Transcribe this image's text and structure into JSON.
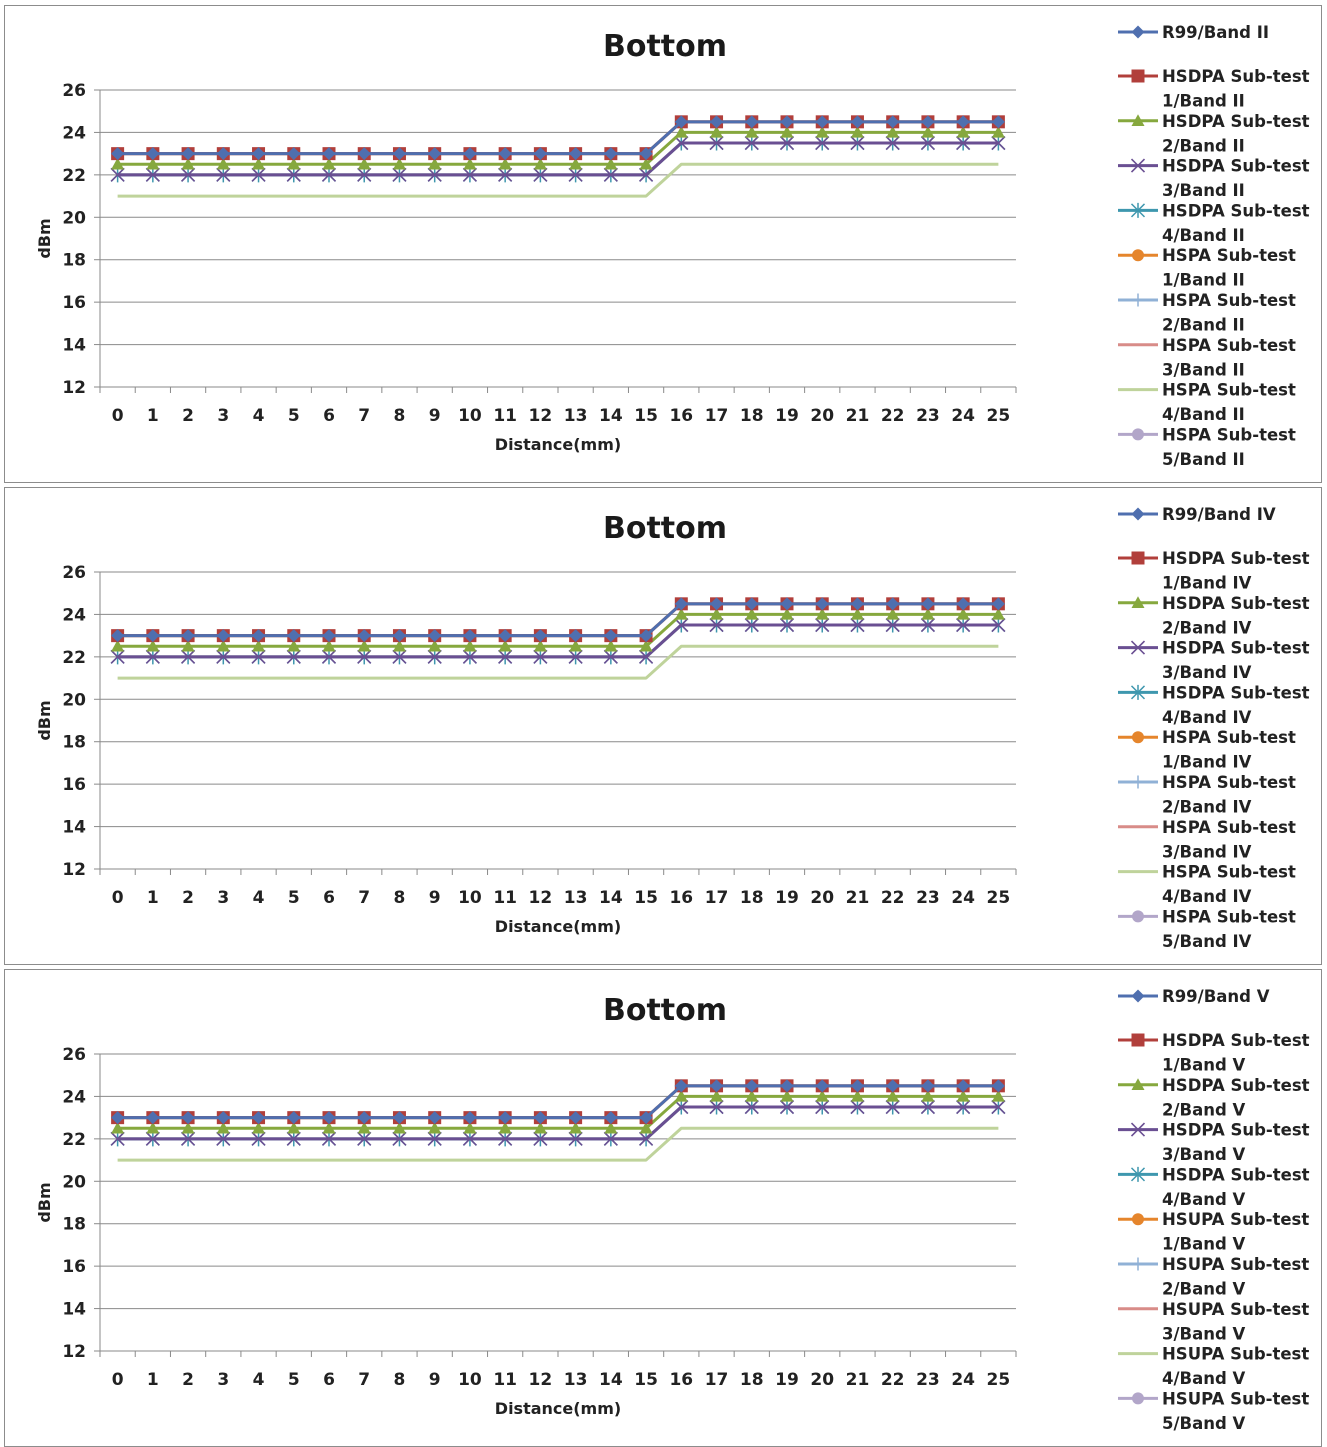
{
  "chart_data": [
    {
      "type": "line",
      "title": "Bottom",
      "xlabel": "Distance(mm)",
      "ylabel": "dBm",
      "ylim": [
        12,
        26
      ],
      "yticks": [
        12,
        14,
        16,
        18,
        20,
        22,
        24,
        26
      ],
      "grid": true,
      "legend": "right",
      "x": [
        0,
        1,
        2,
        3,
        4,
        5,
        6,
        7,
        8,
        9,
        10,
        11,
        12,
        13,
        14,
        15,
        16,
        17,
        18,
        19,
        20,
        21,
        22,
        23,
        24,
        25
      ],
      "series": [
        {
          "name": "R99/Band II",
          "color": "#4f6faf",
          "marker": "diamond",
          "values": [
            23,
            23,
            23,
            23,
            23,
            23,
            23,
            23,
            23,
            23,
            23,
            23,
            23,
            23,
            23,
            23,
            24.5,
            24.5,
            24.5,
            24.5,
            24.5,
            24.5,
            24.5,
            24.5,
            24.5,
            24.5
          ]
        },
        {
          "name": "HSDPA Sub-test 1/Band II",
          "color": "#b13f3b",
          "marker": "square",
          "values": [
            23,
            23,
            23,
            23,
            23,
            23,
            23,
            23,
            23,
            23,
            23,
            23,
            23,
            23,
            23,
            23,
            24.5,
            24.5,
            24.5,
            24.5,
            24.5,
            24.5,
            24.5,
            24.5,
            24.5,
            24.5
          ]
        },
        {
          "name": "HSDPA Sub-test 2/Band II",
          "color": "#86a83e",
          "marker": "triangle",
          "values": [
            22.5,
            22.5,
            22.5,
            22.5,
            22.5,
            22.5,
            22.5,
            22.5,
            22.5,
            22.5,
            22.5,
            22.5,
            22.5,
            22.5,
            22.5,
            22.5,
            24,
            24,
            24,
            24,
            24,
            24,
            24,
            24,
            24,
            24
          ]
        },
        {
          "name": "HSDPA Sub-test 3/Band II",
          "color": "#6a4f92",
          "marker": "x",
          "values": [
            22,
            22,
            22,
            22,
            22,
            22,
            22,
            22,
            22,
            22,
            22,
            22,
            22,
            22,
            22,
            22,
            23.5,
            23.5,
            23.5,
            23.5,
            23.5,
            23.5,
            23.5,
            23.5,
            23.5,
            23.5
          ]
        },
        {
          "name": "HSDPA Sub-test 4/Band II",
          "color": "#3e97ae",
          "marker": "asterisk",
          "values": [
            22,
            22,
            22,
            22,
            22,
            22,
            22,
            22,
            22,
            22,
            22,
            22,
            22,
            22,
            22,
            22,
            23.5,
            23.5,
            23.5,
            23.5,
            23.5,
            23.5,
            23.5,
            23.5,
            23.5,
            23.5
          ]
        },
        {
          "name": "HSPA Sub-test 1/Band II",
          "color": "#e5852c",
          "marker": "circle",
          "values": [
            23,
            23,
            23,
            23,
            23,
            23,
            23,
            23,
            23,
            23,
            23,
            23,
            23,
            23,
            23,
            23,
            24.5,
            24.5,
            24.5,
            24.5,
            24.5,
            24.5,
            24.5,
            24.5,
            24.5,
            24.5
          ]
        },
        {
          "name": "HSPA Sub-test 2/Band II",
          "color": "#90b1d6",
          "marker": "plus",
          "values": [
            23,
            23,
            23,
            23,
            23,
            23,
            23,
            23,
            23,
            23,
            23,
            23,
            23,
            23,
            23,
            23,
            24.5,
            24.5,
            24.5,
            24.5,
            24.5,
            24.5,
            24.5,
            24.5,
            24.5,
            24.5
          ]
        },
        {
          "name": "HSPA Sub-test 3/Band II",
          "color": "#d88c88",
          "marker": "none",
          "values": [
            22,
            22,
            22,
            22,
            22,
            22,
            22,
            22,
            22,
            22,
            22,
            22,
            22,
            22,
            22,
            22,
            23.5,
            23.5,
            23.5,
            23.5,
            23.5,
            23.5,
            23.5,
            23.5,
            23.5,
            23.5
          ]
        },
        {
          "name": "HSPA Sub-test 4/Band II",
          "color": "#bfd39b",
          "marker": "none",
          "values": [
            21,
            21,
            21,
            21,
            21,
            21,
            21,
            21,
            21,
            21,
            21,
            21,
            21,
            21,
            21,
            21,
            22.5,
            22.5,
            22.5,
            22.5,
            22.5,
            22.5,
            22.5,
            22.5,
            22.5,
            22.5
          ]
        },
        {
          "name": "HSPA Sub-test 5/Band II",
          "color": "#b2a6c9",
          "marker": "circle",
          "values": [
            23,
            23,
            23,
            23,
            23,
            23,
            23,
            23,
            23,
            23,
            23,
            23,
            23,
            23,
            23,
            23,
            24.5,
            24.5,
            24.5,
            24.5,
            24.5,
            24.5,
            24.5,
            24.5,
            24.5,
            24.5
          ]
        }
      ]
    },
    {
      "type": "line",
      "title": "Bottom",
      "xlabel": "Distance(mm)",
      "ylabel": "dBm",
      "ylim": [
        12,
        26
      ],
      "yticks": [
        12,
        14,
        16,
        18,
        20,
        22,
        24,
        26
      ],
      "grid": true,
      "legend": "right",
      "x": [
        0,
        1,
        2,
        3,
        4,
        5,
        6,
        7,
        8,
        9,
        10,
        11,
        12,
        13,
        14,
        15,
        16,
        17,
        18,
        19,
        20,
        21,
        22,
        23,
        24,
        25
      ],
      "series": [
        {
          "name": "R99/Band IV",
          "color": "#4f6faf",
          "marker": "diamond",
          "values": [
            23,
            23,
            23,
            23,
            23,
            23,
            23,
            23,
            23,
            23,
            23,
            23,
            23,
            23,
            23,
            23,
            24.5,
            24.5,
            24.5,
            24.5,
            24.5,
            24.5,
            24.5,
            24.5,
            24.5,
            24.5
          ]
        },
        {
          "name": "HSDPA Sub-test 1/Band IV",
          "color": "#b13f3b",
          "marker": "square",
          "values": [
            23,
            23,
            23,
            23,
            23,
            23,
            23,
            23,
            23,
            23,
            23,
            23,
            23,
            23,
            23,
            23,
            24.5,
            24.5,
            24.5,
            24.5,
            24.5,
            24.5,
            24.5,
            24.5,
            24.5,
            24.5
          ]
        },
        {
          "name": "HSDPA Sub-test 2/Band IV",
          "color": "#86a83e",
          "marker": "triangle",
          "values": [
            22.5,
            22.5,
            22.5,
            22.5,
            22.5,
            22.5,
            22.5,
            22.5,
            22.5,
            22.5,
            22.5,
            22.5,
            22.5,
            22.5,
            22.5,
            22.5,
            24,
            24,
            24,
            24,
            24,
            24,
            24,
            24,
            24,
            24
          ]
        },
        {
          "name": "HSDPA Sub-test 3/Band IV",
          "color": "#6a4f92",
          "marker": "x",
          "values": [
            22,
            22,
            22,
            22,
            22,
            22,
            22,
            22,
            22,
            22,
            22,
            22,
            22,
            22,
            22,
            22,
            23.5,
            23.5,
            23.5,
            23.5,
            23.5,
            23.5,
            23.5,
            23.5,
            23.5,
            23.5
          ]
        },
        {
          "name": "HSDPA Sub-test 4/Band IV",
          "color": "#3e97ae",
          "marker": "asterisk",
          "values": [
            22,
            22,
            22,
            22,
            22,
            22,
            22,
            22,
            22,
            22,
            22,
            22,
            22,
            22,
            22,
            22,
            23.5,
            23.5,
            23.5,
            23.5,
            23.5,
            23.5,
            23.5,
            23.5,
            23.5,
            23.5
          ]
        },
        {
          "name": "HSPA Sub-test 1/Band IV",
          "color": "#e5852c",
          "marker": "circle",
          "values": [
            23,
            23,
            23,
            23,
            23,
            23,
            23,
            23,
            23,
            23,
            23,
            23,
            23,
            23,
            23,
            23,
            24.5,
            24.5,
            24.5,
            24.5,
            24.5,
            24.5,
            24.5,
            24.5,
            24.5,
            24.5
          ]
        },
        {
          "name": "HSPA Sub-test 2/Band IV",
          "color": "#90b1d6",
          "marker": "plus",
          "values": [
            23,
            23,
            23,
            23,
            23,
            23,
            23,
            23,
            23,
            23,
            23,
            23,
            23,
            23,
            23,
            23,
            24.5,
            24.5,
            24.5,
            24.5,
            24.5,
            24.5,
            24.5,
            24.5,
            24.5,
            24.5
          ]
        },
        {
          "name": "HSPA Sub-test 3/Band IV",
          "color": "#d88c88",
          "marker": "none",
          "values": [
            22,
            22,
            22,
            22,
            22,
            22,
            22,
            22,
            22,
            22,
            22,
            22,
            22,
            22,
            22,
            22,
            23.5,
            23.5,
            23.5,
            23.5,
            23.5,
            23.5,
            23.5,
            23.5,
            23.5,
            23.5
          ]
        },
        {
          "name": "HSPA Sub-test 4/Band IV",
          "color": "#bfd39b",
          "marker": "none",
          "values": [
            21,
            21,
            21,
            21,
            21,
            21,
            21,
            21,
            21,
            21,
            21,
            21,
            21,
            21,
            21,
            21,
            22.5,
            22.5,
            22.5,
            22.5,
            22.5,
            22.5,
            22.5,
            22.5,
            22.5,
            22.5
          ]
        },
        {
          "name": "HSPA Sub-test 5/Band IV",
          "color": "#b2a6c9",
          "marker": "circle",
          "values": [
            23,
            23,
            23,
            23,
            23,
            23,
            23,
            23,
            23,
            23,
            23,
            23,
            23,
            23,
            23,
            23,
            24.5,
            24.5,
            24.5,
            24.5,
            24.5,
            24.5,
            24.5,
            24.5,
            24.5,
            24.5
          ]
        }
      ]
    },
    {
      "type": "line",
      "title": "Bottom",
      "xlabel": "Distance(mm)",
      "ylabel": "dBm",
      "ylim": [
        12,
        26
      ],
      "yticks": [
        12,
        14,
        16,
        18,
        20,
        22,
        24,
        26
      ],
      "grid": true,
      "legend": "right",
      "x": [
        0,
        1,
        2,
        3,
        4,
        5,
        6,
        7,
        8,
        9,
        10,
        11,
        12,
        13,
        14,
        15,
        16,
        17,
        18,
        19,
        20,
        21,
        22,
        23,
        24,
        25
      ],
      "series": [
        {
          "name": "R99/Band V",
          "color": "#4f6faf",
          "marker": "diamond",
          "values": [
            23,
            23,
            23,
            23,
            23,
            23,
            23,
            23,
            23,
            23,
            23,
            23,
            23,
            23,
            23,
            23,
            24.5,
            24.5,
            24.5,
            24.5,
            24.5,
            24.5,
            24.5,
            24.5,
            24.5,
            24.5
          ]
        },
        {
          "name": "HSDPA Sub-test 1/Band V",
          "color": "#b13f3b",
          "marker": "square",
          "values": [
            23,
            23,
            23,
            23,
            23,
            23,
            23,
            23,
            23,
            23,
            23,
            23,
            23,
            23,
            23,
            23,
            24.5,
            24.5,
            24.5,
            24.5,
            24.5,
            24.5,
            24.5,
            24.5,
            24.5,
            24.5
          ]
        },
        {
          "name": "HSDPA Sub-test 2/Band V",
          "color": "#86a83e",
          "marker": "triangle",
          "values": [
            22.5,
            22.5,
            22.5,
            22.5,
            22.5,
            22.5,
            22.5,
            22.5,
            22.5,
            22.5,
            22.5,
            22.5,
            22.5,
            22.5,
            22.5,
            22.5,
            24,
            24,
            24,
            24,
            24,
            24,
            24,
            24,
            24,
            24
          ]
        },
        {
          "name": "HSDPA Sub-test 3/Band V",
          "color": "#6a4f92",
          "marker": "x",
          "values": [
            22,
            22,
            22,
            22,
            22,
            22,
            22,
            22,
            22,
            22,
            22,
            22,
            22,
            22,
            22,
            22,
            23.5,
            23.5,
            23.5,
            23.5,
            23.5,
            23.5,
            23.5,
            23.5,
            23.5,
            23.5
          ]
        },
        {
          "name": "HSDPA Sub-test 4/Band V",
          "color": "#3e97ae",
          "marker": "asterisk",
          "values": [
            22,
            22,
            22,
            22,
            22,
            22,
            22,
            22,
            22,
            22,
            22,
            22,
            22,
            22,
            22,
            22,
            23.5,
            23.5,
            23.5,
            23.5,
            23.5,
            23.5,
            23.5,
            23.5,
            23.5,
            23.5
          ]
        },
        {
          "name": "HSUPA Sub-test 1/Band V",
          "color": "#e5852c",
          "marker": "circle",
          "values": [
            23,
            23,
            23,
            23,
            23,
            23,
            23,
            23,
            23,
            23,
            23,
            23,
            23,
            23,
            23,
            23,
            24.5,
            24.5,
            24.5,
            24.5,
            24.5,
            24.5,
            24.5,
            24.5,
            24.5,
            24.5
          ]
        },
        {
          "name": "HSUPA Sub-test 2/Band V",
          "color": "#90b1d6",
          "marker": "plus",
          "values": [
            23,
            23,
            23,
            23,
            23,
            23,
            23,
            23,
            23,
            23,
            23,
            23,
            23,
            23,
            23,
            23,
            24.5,
            24.5,
            24.5,
            24.5,
            24.5,
            24.5,
            24.5,
            24.5,
            24.5,
            24.5
          ]
        },
        {
          "name": "HSUPA Sub-test 3/Band V",
          "color": "#d88c88",
          "marker": "none",
          "values": [
            22,
            22,
            22,
            22,
            22,
            22,
            22,
            22,
            22,
            22,
            22,
            22,
            22,
            22,
            22,
            22,
            23.5,
            23.5,
            23.5,
            23.5,
            23.5,
            23.5,
            23.5,
            23.5,
            23.5,
            23.5
          ]
        },
        {
          "name": "HSUPA Sub-test 4/Band V",
          "color": "#bfd39b",
          "marker": "none",
          "values": [
            21,
            21,
            21,
            21,
            21,
            21,
            21,
            21,
            21,
            21,
            21,
            21,
            21,
            21,
            21,
            21,
            22.5,
            22.5,
            22.5,
            22.5,
            22.5,
            22.5,
            22.5,
            22.5,
            22.5,
            22.5
          ]
        },
        {
          "name": "HSUPA Sub-test 5/Band V",
          "color": "#b2a6c9",
          "marker": "circle",
          "values": [
            23,
            23,
            23,
            23,
            23,
            23,
            23,
            23,
            23,
            23,
            23,
            23,
            23,
            23,
            23,
            23,
            24.5,
            24.5,
            24.5,
            24.5,
            24.5,
            24.5,
            24.5,
            24.5,
            24.5,
            24.5
          ]
        }
      ]
    }
  ]
}
